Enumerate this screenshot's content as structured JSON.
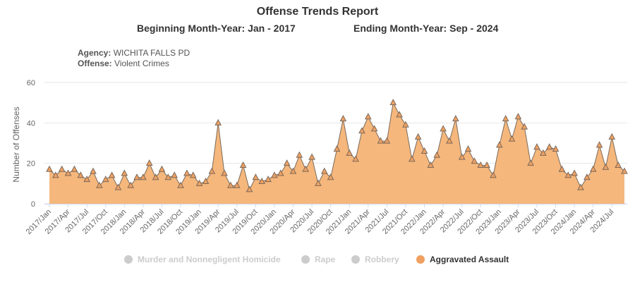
{
  "report": {
    "title": "Offense Trends Report",
    "beginning": "Beginning Month-Year: Jan - 2017",
    "ending": "Ending Month-Year: Sep - 2024",
    "agency_label": "Agency:",
    "agency_value": "WICHITA FALLS PD",
    "offense_label": "Offense:",
    "offense_value": "Violent Crimes"
  },
  "colors": {
    "series_fill": "#f5b77c",
    "series_line": "#7a6a5d",
    "marker_fill": "#f0a060",
    "grid": "#e6e6e6",
    "axis_text": "#666666",
    "legend_hidden": "#cccccc",
    "legend_active_dot": "#f0a060"
  },
  "legend": [
    {
      "name": "Murder and Nonnegligent Homicide",
      "visible": false
    },
    {
      "name": "Rape",
      "visible": false
    },
    {
      "name": "Robbery",
      "visible": false
    },
    {
      "name": "Aggravated Assault",
      "visible": true
    }
  ],
  "chart_data": {
    "type": "area",
    "title": "Offense Trends Report",
    "xlabel": "",
    "ylabel": "Number of Offenses",
    "ylim": [
      0,
      60
    ],
    "yticks": [
      0,
      20,
      40,
      60
    ],
    "grid": true,
    "legend_position": "bottom",
    "x": [
      "2017/Jan",
      "2017/Feb",
      "2017/Mar",
      "2017/Apr",
      "2017/May",
      "2017/Jun",
      "2017/Jul",
      "2017/Aug",
      "2017/Sep",
      "2017/Oct",
      "2017/Nov",
      "2017/Dec",
      "2018/Jan",
      "2018/Feb",
      "2018/Mar",
      "2018/Apr",
      "2018/May",
      "2018/Jun",
      "2018/Jul",
      "2018/Aug",
      "2018/Sep",
      "2018/Oct",
      "2018/Nov",
      "2018/Dec",
      "2019/Jan",
      "2019/Feb",
      "2019/Mar",
      "2019/Apr",
      "2019/May",
      "2019/Jun",
      "2019/Jul",
      "2019/Aug",
      "2019/Sep",
      "2019/Oct",
      "2019/Nov",
      "2019/Dec",
      "2020/Jan",
      "2020/Feb",
      "2020/Mar",
      "2020/Apr",
      "2020/May",
      "2020/Jun",
      "2020/Jul",
      "2020/Aug",
      "2020/Sep",
      "2020/Oct",
      "2020/Nov",
      "2020/Dec",
      "2021/Jan",
      "2021/Feb",
      "2021/Mar",
      "2021/Apr",
      "2021/May",
      "2021/Jun",
      "2021/Jul",
      "2021/Aug",
      "2021/Sep",
      "2021/Oct",
      "2021/Nov",
      "2021/Dec",
      "2022/Jan",
      "2022/Feb",
      "2022/Mar",
      "2022/Apr",
      "2022/May",
      "2022/Jun",
      "2022/Jul",
      "2022/Aug",
      "2022/Sep",
      "2022/Oct",
      "2022/Nov",
      "2022/Dec",
      "2023/Jan",
      "2023/Feb",
      "2023/Mar",
      "2023/Apr",
      "2023/May",
      "2023/Jun",
      "2023/Jul",
      "2023/Aug",
      "2023/Sep",
      "2023/Oct",
      "2023/Nov",
      "2023/Dec",
      "2024/Jan",
      "2024/Feb",
      "2024/Mar",
      "2024/Apr",
      "2024/May",
      "2024/Jun",
      "2024/Jul",
      "2024/Aug",
      "2024/Sep"
    ],
    "x_tick_labels": [
      "2017/Jan",
      "2017/Apr",
      "2017/Jul",
      "2017/Oct",
      "2018/Jan",
      "2018/Apr",
      "2018/Jul",
      "2018/Oct",
      "2019/Jan",
      "2019/Apr",
      "2019/Jul",
      "2019/Oct",
      "2020/Jan",
      "2020/Apr",
      "2020/Jul",
      "2020/Oct",
      "2021/Jan",
      "2021/Apr",
      "2021/Jul",
      "2021/Oct",
      "2022/Jan",
      "2022/Apr",
      "2022/Jul",
      "2022/Oct",
      "2023/Jan",
      "2023/Apr",
      "2023/Jul",
      "2023/Oct",
      "2024/Jan",
      "2024/Apr",
      "2024/Jul"
    ],
    "series": [
      {
        "name": "Aggravated Assault",
        "values": [
          17,
          14,
          17,
          15,
          17,
          14,
          12,
          16,
          9,
          12,
          14,
          8,
          15,
          9,
          13,
          13,
          20,
          13,
          17,
          13,
          14,
          9,
          15,
          14,
          10,
          11,
          16,
          40,
          15,
          9,
          9,
          19,
          7,
          13,
          11,
          12,
          14,
          15,
          20,
          16,
          24,
          17,
          23,
          10,
          16,
          13,
          27,
          42,
          25,
          22,
          36,
          43,
          37,
          31,
          31,
          50,
          44,
          39,
          22,
          33,
          26,
          19,
          24,
          37,
          31,
          42,
          23,
          27,
          21,
          19,
          19,
          14,
          29,
          42,
          32,
          43,
          38,
          20,
          28,
          25,
          28,
          27,
          17,
          14,
          15,
          8,
          13,
          17,
          29,
          18,
          33,
          19,
          16
        ]
      }
    ]
  }
}
